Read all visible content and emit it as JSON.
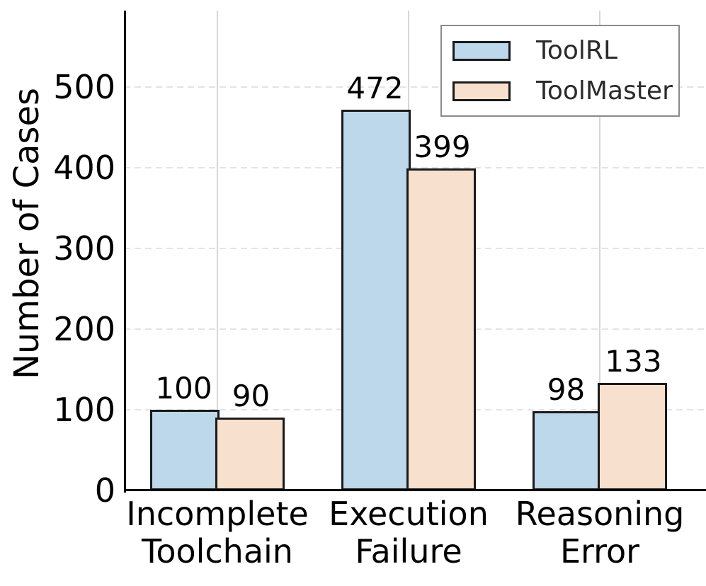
{
  "chart_data": {
    "type": "bar",
    "title": "",
    "xlabel": "",
    "ylabel": "Number of Cases",
    "categories": [
      "Incomplete\nToolchain",
      "Execution\nFailure",
      "Reasoning\nError"
    ],
    "series": [
      {
        "name": "ToolRL",
        "color": "#BDD7EB",
        "values": [
          100,
          472,
          98
        ]
      },
      {
        "name": "ToolMaster",
        "color": "#F8E0CE",
        "values": [
          90,
          399,
          133
        ]
      }
    ],
    "bar_value_labels": [
      [
        100,
        472,
        98
      ],
      [
        90,
        399,
        133
      ]
    ],
    "yticks": [
      0,
      100,
      200,
      300,
      400,
      500
    ],
    "ylim": [
      0,
      595
    ],
    "bar_edge_color": "#1a1a1a",
    "grid": {
      "horizontal": "dashed",
      "vertical": "solid",
      "color": "#e4e4e4"
    },
    "legend_position": "top-right",
    "legend_border_color": "#8b8b8b"
  }
}
